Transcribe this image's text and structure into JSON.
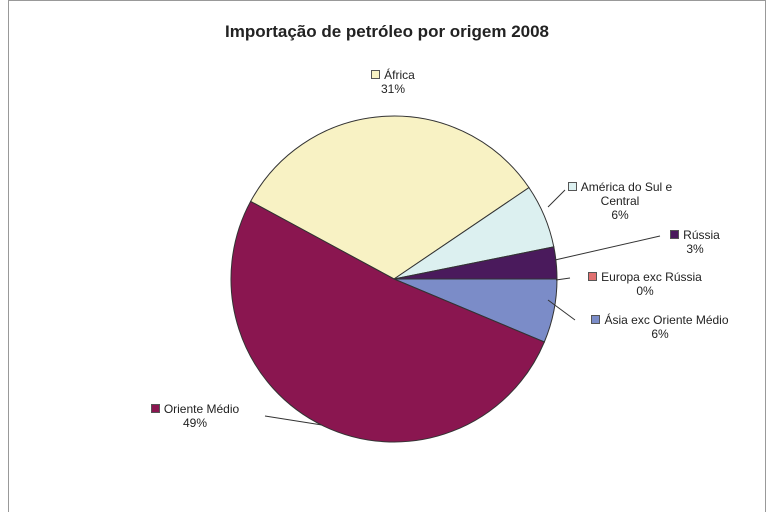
{
  "chart_data": {
    "type": "pie",
    "title": "Importação de petróleo por origem 2008",
    "categories": [
      "África",
      "América do Sul e Central",
      "Rússia",
      "Europa exc Rússia",
      "Ásia exc Oriente Médio",
      "Oriente Médio"
    ],
    "values": [
      31,
      6,
      3,
      0,
      6,
      49
    ],
    "value_labels": [
      "31%",
      "6%",
      "3%",
      "0%",
      "6%",
      "49%"
    ],
    "colors": [
      "#f8f2c4",
      "#dcf0f0",
      "#4a1a5c",
      "#e07070",
      "#7b8cc8",
      "#8a1650"
    ]
  }
}
